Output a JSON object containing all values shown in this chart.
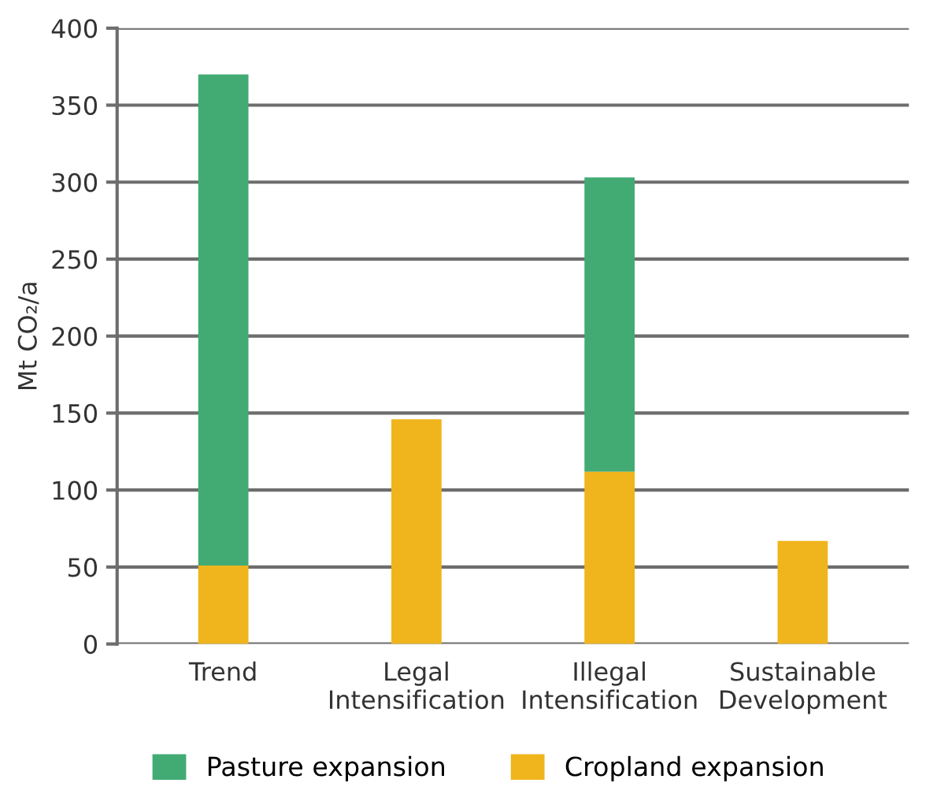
{
  "chart_data": {
    "type": "bar",
    "stacked": true,
    "ylabel": "Mt CO₂/a",
    "categories": [
      "Trend",
      "Legal\nIntensification",
      "Illegal\nIntensification",
      "Sustainable\nDevelopment"
    ],
    "series": [
      {
        "name": "Cropland expansion",
        "color": "#f0b41c",
        "values": [
          51,
          146,
          112,
          67
        ]
      },
      {
        "name": "Pasture expansion",
        "color": "#42ab74",
        "values": [
          319,
          null,
          191,
          null
        ]
      }
    ],
    "ylim": [
      0,
      400
    ],
    "yticks": [
      0,
      50,
      100,
      150,
      200,
      250,
      300,
      350,
      400
    ],
    "grid": "y",
    "legend": "bottom"
  }
}
